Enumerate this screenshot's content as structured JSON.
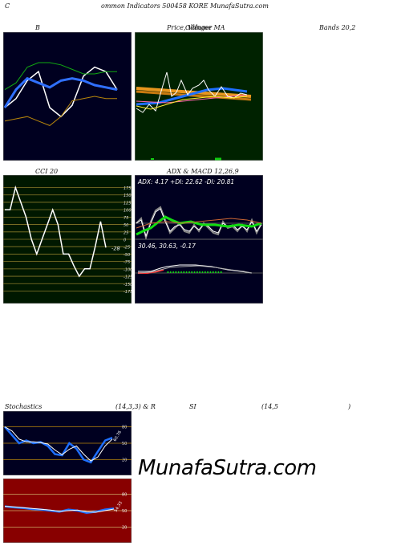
{
  "header": {
    "c": "C",
    "title": "ommon  Indicators 500458  KORE MunafaSutra.com"
  },
  "labels": {
    "bands_b": "B",
    "price_ma": "Price,  Volume  MA",
    "price_ma_overlay": "Ollinger",
    "bands_right": "Bands 20,2",
    "cci": "CCI 20",
    "adx_title": "ADX  & MACD 12,26,9",
    "stoch_left": "Stochastics",
    "stoch_mid": "(14,3,3) & R",
    "stoch_si": "SI",
    "stoch_rsi": "(14,5",
    "stoch_end": ")"
  },
  "adx": {
    "readout": "ADX: 4.17  +DI: 22.62  -DI: 20.81"
  },
  "macd": {
    "readout": "30.46,  30.63,  -0.17"
  },
  "watermark": "MunafaSutra.com",
  "colors": {
    "dark_bg": "#000020",
    "green_bg": "#002200",
    "cci_bg": "#001800",
    "rsi_bg": "#880000",
    "gold": "#b8860b",
    "blue": "#1e6fff",
    "green": "#11aa11"
  },
  "chart_data": [
    {
      "type": "line",
      "name": "bollinger",
      "series": [
        {
          "color": "#ffffff",
          "values": [
            30,
            34,
            42,
            46,
            30,
            26,
            31,
            44,
            48,
            46,
            38
          ]
        },
        {
          "color": "#3070ff",
          "values": [
            30,
            38,
            43,
            41,
            39,
            42,
            43,
            42,
            40,
            39,
            38
          ]
        },
        {
          "color": "#11aa11",
          "values": [
            38,
            41,
            48,
            50,
            50,
            49,
            47,
            45,
            45,
            46,
            46
          ]
        },
        {
          "color": "#b8860b",
          "values": [
            24,
            25,
            26,
            24,
            22,
            26,
            33,
            34,
            35,
            34,
            34
          ]
        }
      ]
    },
    {
      "type": "line",
      "name": "cci",
      "ticks": [
        175,
        150,
        125,
        100,
        75,
        50,
        25,
        0,
        -25,
        -50,
        -75,
        -100,
        -125,
        -150,
        -175
      ],
      "value_label": "-28",
      "values": [
        100,
        100,
        175,
        125,
        75,
        0,
        -50,
        0,
        50,
        100,
        50,
        -50,
        -50,
        -90,
        -125,
        -100,
        -100,
        -25,
        60,
        -28
      ]
    },
    {
      "type": "line",
      "name": "stochastics",
      "ticks": [
        80,
        50,
        20
      ],
      "value_label": "60.76",
      "values": [
        80,
        65,
        50,
        55,
        50,
        52,
        45,
        30,
        28,
        50,
        40,
        20,
        15,
        35,
        55,
        60
      ]
    },
    {
      "type": "line",
      "name": "rsi",
      "ticks": [
        80,
        50,
        20
      ],
      "value_label": "54.33",
      "values": [
        58,
        56,
        55,
        53,
        52,
        50,
        48,
        52,
        50,
        46,
        48,
        52,
        54
      ]
    }
  ]
}
